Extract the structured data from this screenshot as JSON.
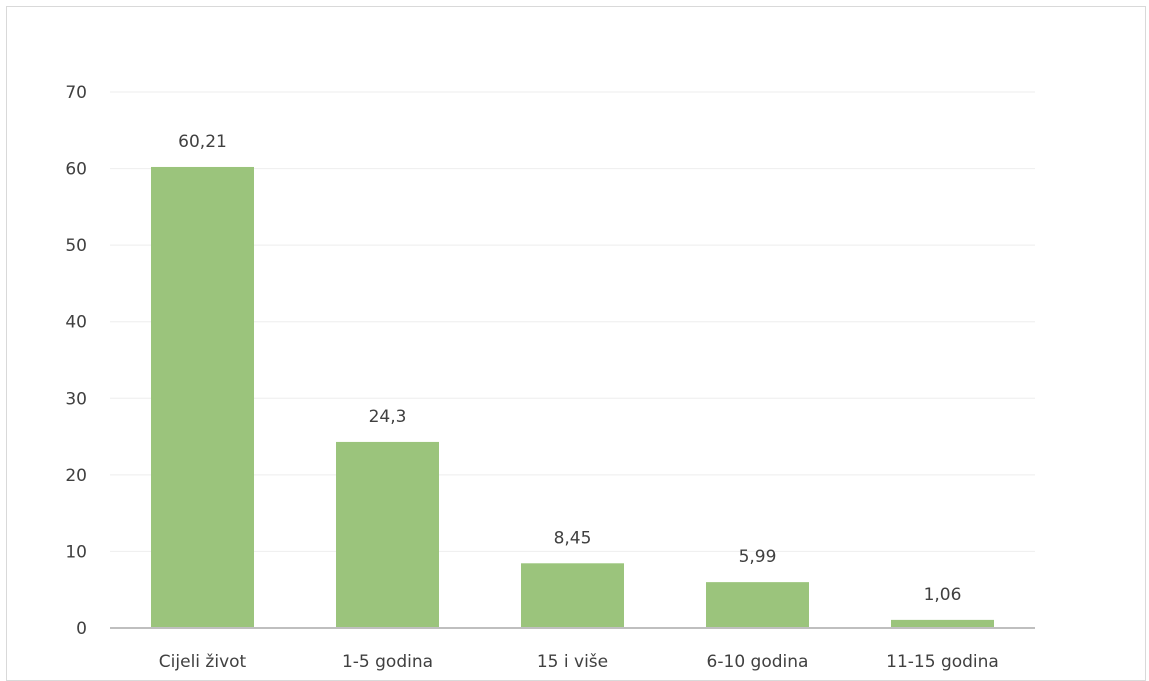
{
  "chart_data": {
    "type": "bar",
    "categories": [
      "Cijeli život",
      "1-5 godina",
      "15 i više",
      "6-10 godina",
      "11-15 godina"
    ],
    "values": [
      60.21,
      24.3,
      8.45,
      5.99,
      1.06
    ],
    "value_labels": [
      "60,21",
      "24,3",
      "8,45",
      "5,99",
      "1,06"
    ],
    "title": "",
    "xlabel": "",
    "ylabel": "",
    "ylim": [
      0,
      70
    ],
    "yticks": [
      0,
      10,
      20,
      30,
      40,
      50,
      60,
      70
    ],
    "grid": true,
    "legend": "none",
    "colors": {
      "bar": "#9bc47c",
      "grid": "#eeeeee",
      "axis": "#bfbfbf",
      "text": "#404040",
      "border": "#d9d9d9"
    }
  }
}
